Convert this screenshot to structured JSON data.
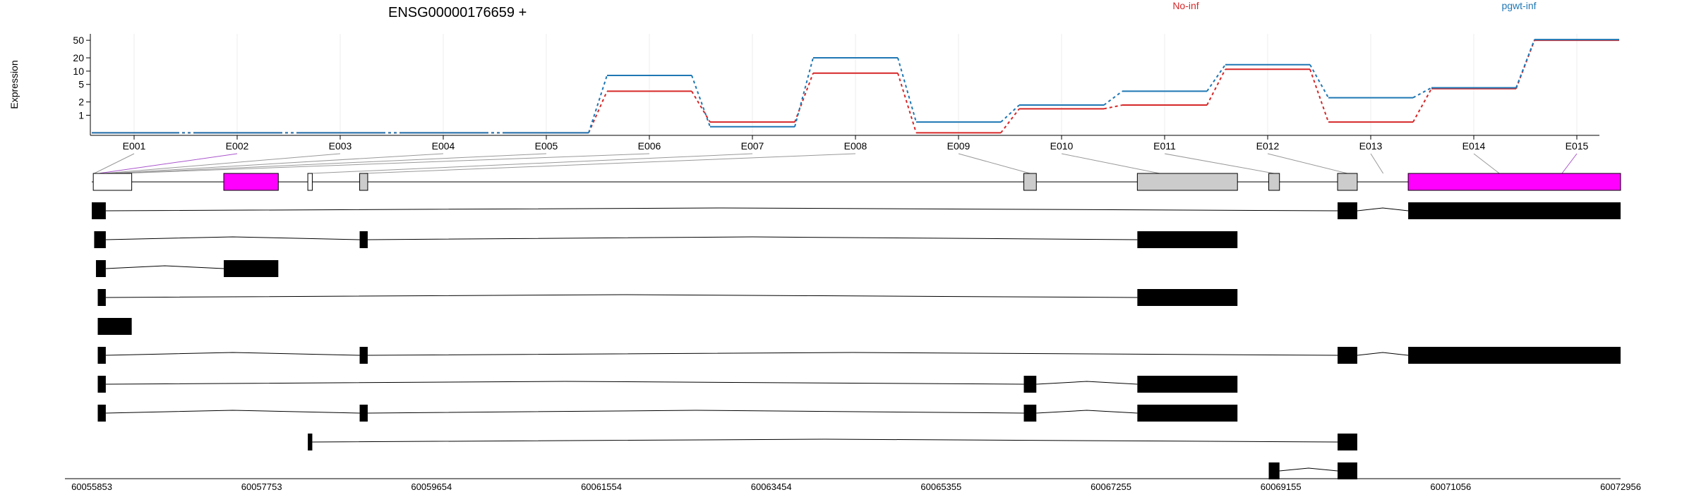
{
  "chart_data": {
    "type": "line",
    "title": "ENSG00000176659 +",
    "ylabel": "Expression",
    "xlabel": "",
    "y_scale": "log",
    "y_ticks": [
      1,
      2,
      5,
      10,
      20,
      50
    ],
    "ylim": [
      0.35,
      70
    ],
    "grid": "vertical",
    "legend_position": "top",
    "categories": [
      "E001",
      "E002",
      "E003",
      "E004",
      "E005",
      "E006",
      "E007",
      "E008",
      "E009",
      "E010",
      "E011",
      "E012",
      "E013",
      "E014",
      "E015"
    ],
    "series": [
      {
        "name": "No-inf",
        "color": "#d62728",
        "values": [
          0.4,
          0.4,
          0.4,
          0.4,
          0.4,
          3.5,
          0.7,
          9,
          0.4,
          1.4,
          1.7,
          11,
          0.7,
          4,
          50
        ]
      },
      {
        "name": "pgwt-inf",
        "color": "#1f77b4",
        "values": [
          0.4,
          0.4,
          0.4,
          0.4,
          0.4,
          8,
          0.55,
          20,
          0.7,
          1.7,
          3.5,
          14,
          2.5,
          4.2,
          52
        ]
      }
    ],
    "genome_ticks": [
      "60055853",
      "60057753",
      "60059654",
      "60061554",
      "60063454",
      "60065355",
      "60067255",
      "60069155",
      "60071056",
      "60072956"
    ],
    "genome_range": [
      60055853,
      60072956
    ],
    "gene_model": {
      "exons": [
        {
          "id": "E001",
          "start": 60055870,
          "end": 60056300,
          "highlight": false,
          "fill": "#ffffff"
        },
        {
          "id": "E002",
          "start": 60057330,
          "end": 60057940,
          "highlight": true,
          "fill": "#ff00ff"
        },
        {
          "id": "E003",
          "start": 60058270,
          "end": 60058320,
          "highlight": false,
          "fill": "#ffffff"
        },
        {
          "id": "E004",
          "start": 60058850,
          "end": 60058940,
          "highlight": false,
          "fill": "#cccccc"
        },
        {
          "id": "E010",
          "start": 60066280,
          "end": 60066420,
          "highlight": false,
          "fill": "#cccccc"
        },
        {
          "id": "E011",
          "start": 60067550,
          "end": 60068670,
          "highlight": false,
          "fill": "#cccccc"
        },
        {
          "id": "E012",
          "start": 60069020,
          "end": 60069140,
          "highlight": false,
          "fill": "#cccccc"
        },
        {
          "id": "E013",
          "start": 60069790,
          "end": 60070010,
          "highlight": false,
          "fill": "#cccccc"
        },
        {
          "id": "E015",
          "start": 60070580,
          "end": 60072956,
          "highlight": true,
          "fill": "#ff00ff"
        }
      ],
      "connector_exon_positions": [
        60055880,
        60055930,
        60055990,
        60056060,
        60056120,
        60056180,
        60058300,
        60058890,
        60066350,
        60067800,
        60069080,
        60069900,
        60070300,
        60071600,
        60072300
      ]
    },
    "transcripts": [
      {
        "exons": [
          [
            60055853,
            60056010
          ],
          [
            60069790,
            60070010
          ],
          [
            60070580,
            60072956
          ]
        ]
      },
      {
        "exons": [
          [
            60055880,
            60056010
          ],
          [
            60058850,
            60058940
          ],
          [
            60067550,
            60068670
          ]
        ]
      },
      {
        "exons": [
          [
            60055900,
            60056010
          ],
          [
            60057330,
            60057940
          ]
        ]
      },
      {
        "exons": [
          [
            60055920,
            60056010
          ],
          [
            60067550,
            60068670
          ]
        ]
      },
      {
        "exons": [
          [
            60055920,
            60056300
          ]
        ]
      },
      {
        "exons": [
          [
            60055920,
            60056010
          ],
          [
            60058850,
            60058940
          ],
          [
            60069790,
            60070010
          ],
          [
            60070580,
            60072956
          ]
        ]
      },
      {
        "exons": [
          [
            60055920,
            60056010
          ],
          [
            60066280,
            60066420
          ],
          [
            60067550,
            60068670
          ]
        ]
      },
      {
        "exons": [
          [
            60055920,
            60056010
          ],
          [
            60058850,
            60058940
          ],
          [
            60066280,
            60066420
          ],
          [
            60067550,
            60068670
          ]
        ]
      },
      {
        "exons": [
          [
            60058270,
            60058320
          ],
          [
            60069790,
            60070010
          ]
        ]
      },
      {
        "exons": [
          [
            60069020,
            60069140
          ],
          [
            60069790,
            60070010
          ]
        ]
      }
    ]
  }
}
